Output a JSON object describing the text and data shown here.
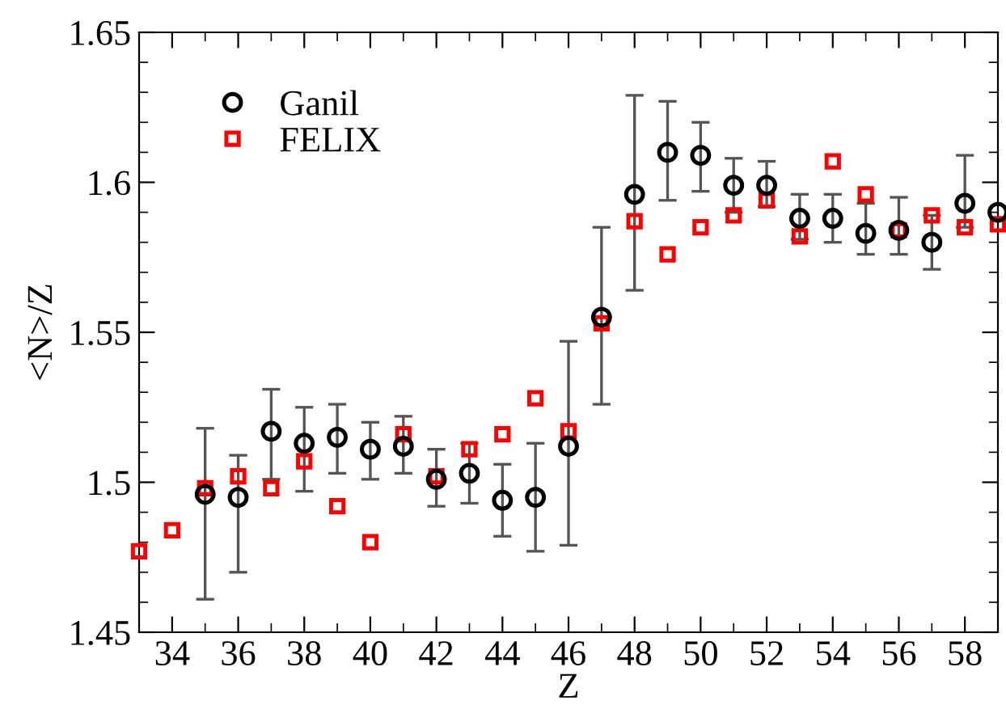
{
  "chart_data": {
    "type": "scatter",
    "xlabel": "Z",
    "ylabel": "<N>/Z",
    "xlim": [
      33,
      59
    ],
    "ylim": [
      1.45,
      1.65
    ],
    "xticks": [
      34,
      36,
      38,
      40,
      42,
      44,
      46,
      48,
      50,
      52,
      54,
      56,
      58
    ],
    "yticks": [
      1.45,
      1.5,
      1.55,
      1.6,
      1.65
    ],
    "grid": false,
    "legend": "top left",
    "series": [
      {
        "name": "Ganil",
        "color": "#000000",
        "marker": "circle",
        "x": [
          35,
          36,
          37,
          38,
          39,
          40,
          41,
          42,
          43,
          44,
          45,
          46,
          47,
          48,
          49,
          50,
          51,
          52,
          53,
          54,
          55,
          56,
          57,
          58,
          59
        ],
        "values": [
          1.496,
          1.495,
          1.517,
          1.513,
          1.515,
          1.511,
          1.512,
          1.501,
          1.503,
          1.494,
          1.495,
          1.512,
          1.555,
          1.596,
          1.61,
          1.609,
          1.599,
          1.599,
          1.588,
          1.588,
          1.583,
          1.584,
          1.58,
          1.593,
          1.59
        ],
        "errors": [
          [
            1.461,
            1.518
          ],
          [
            1.47,
            1.509
          ],
          [
            1.501,
            1.531
          ],
          [
            1.497,
            1.525
          ],
          [
            1.503,
            1.526
          ],
          [
            1.501,
            1.52
          ],
          [
            1.503,
            1.522
          ],
          [
            1.492,
            1.511
          ],
          [
            1.493,
            1.513
          ],
          [
            1.482,
            1.506
          ],
          [
            1.477,
            1.513
          ],
          [
            1.479,
            1.547
          ],
          [
            1.526,
            1.585
          ],
          [
            1.564,
            1.629
          ],
          [
            1.594,
            1.627
          ],
          [
            1.597,
            1.62
          ],
          [
            1.59,
            1.608
          ],
          [
            1.592,
            1.607
          ],
          [
            1.581,
            1.596
          ],
          [
            1.58,
            1.596
          ],
          [
            1.576,
            1.593
          ],
          [
            1.576,
            1.595
          ],
          [
            1.571,
            1.589
          ],
          [
            1.585,
            1.609
          ],
          null
        ]
      },
      {
        "name": "FELIX",
        "color": "#ff0000",
        "marker": "square",
        "x": [
          33,
          34,
          35,
          36,
          37,
          38,
          39,
          40,
          41,
          42,
          43,
          44,
          45,
          46,
          47,
          48,
          49,
          50,
          51,
          52,
          53,
          54,
          55,
          56,
          57,
          58,
          59
        ],
        "values": [
          1.477,
          1.484,
          1.498,
          1.502,
          1.498,
          1.507,
          1.492,
          1.48,
          1.516,
          1.502,
          1.511,
          1.516,
          1.528,
          1.517,
          1.553,
          1.587,
          1.576,
          1.585,
          1.589,
          1.594,
          1.582,
          1.607,
          1.596,
          1.584,
          1.589,
          1.585,
          1.586
        ]
      }
    ]
  }
}
